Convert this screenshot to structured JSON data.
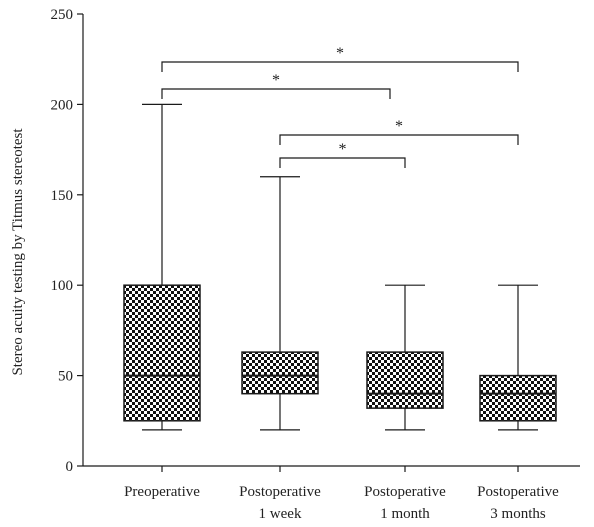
{
  "chart_data": {
    "type": "box",
    "ylabel": "Stereo acuity testing by Titmus stereotest",
    "xlabel": "",
    "ylim": [
      0,
      250
    ],
    "yticks": [
      0,
      50,
      100,
      150,
      200,
      250
    ],
    "grid": false,
    "categories": [
      [
        "Preoperative"
      ],
      [
        "Postoperative",
        "1 week"
      ],
      [
        "Postoperative",
        "1 month"
      ],
      [
        "Postoperative",
        "3 months"
      ]
    ],
    "boxes": [
      {
        "min": 20,
        "q1": 25,
        "median": 50,
        "q3": 100,
        "max": 200
      },
      {
        "min": 20,
        "q1": 40,
        "median": 50,
        "q3": 63,
        "max": 160
      },
      {
        "min": 20,
        "q1": 32,
        "median": 40,
        "q3": 63,
        "max": 100
      },
      {
        "min": 20,
        "q1": 25,
        "median": 40,
        "q3": 50,
        "max": 100
      }
    ],
    "significance": [
      {
        "from": 0,
        "to": 3,
        "label": "*"
      },
      {
        "from": 0,
        "to": 2,
        "label": "*"
      },
      {
        "from": 1,
        "to": 3,
        "label": "*"
      },
      {
        "from": 1,
        "to": 2,
        "label": "*"
      }
    ],
    "box_fill": "checkerboard",
    "colors": {
      "ink": "#1a1a1a",
      "background": "#ffffff"
    }
  }
}
